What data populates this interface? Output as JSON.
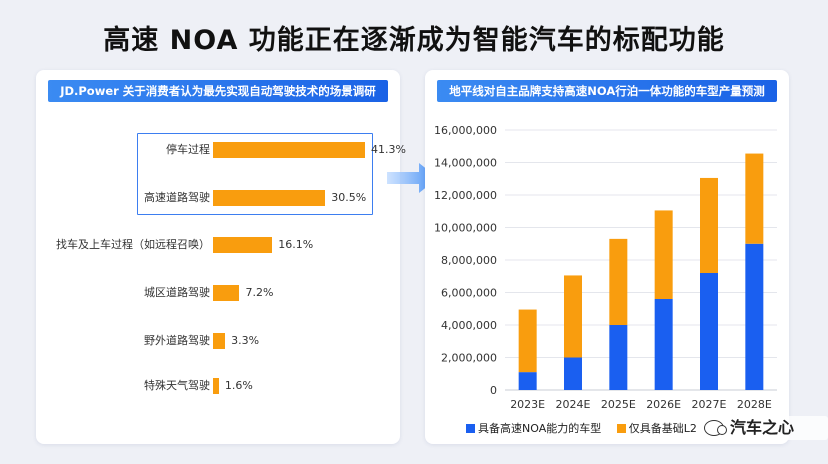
{
  "page": {
    "title": "高速 NOA 功能正在逐渐成为智能汽车的标配功能"
  },
  "left_panel": {
    "title": "JD.Power 关于消费者认为最先实现自动驾驶技术的场景调研"
  },
  "right_panel": {
    "title": "地平线对自主品牌支持高速NOA行泊一体功能的车型产量预测"
  },
  "watermark": {
    "text": "汽车之心"
  },
  "chart_data": [
    {
      "type": "bar",
      "orientation": "horizontal",
      "title": "JD.Power 关于消费者认为最先实现自动驾驶技术的场景调研",
      "categories": [
        "停车过程",
        "高速道路驾驶",
        "找车及上车过程（如远程召唤）",
        "城区道路驾驶",
        "野外道路驾驶",
        "特殊天气驾驶"
      ],
      "values": [
        41.3,
        30.5,
        16.1,
        7.2,
        3.3,
        1.6
      ],
      "value_labels": [
        "41.3%",
        "30.5%",
        "16.1%",
        "7.2%",
        "3.3%",
        "1.6%"
      ],
      "unit": "%",
      "highlighted_categories": [
        "停车过程",
        "高速道路驾驶"
      ],
      "color": "#f99d0e"
    },
    {
      "type": "bar",
      "stacked": true,
      "title": "地平线对自主品牌支持高速NOA行泊一体功能的车型产量预测",
      "categories": [
        "2023E",
        "2024E",
        "2025E",
        "2026E",
        "2027E",
        "2028E"
      ],
      "ylim": [
        0,
        16000000
      ],
      "yticks": [
        "0",
        "2,000,000",
        "4,000,000",
        "6,000,000",
        "8,000,000",
        "10,000,000",
        "12,000,000",
        "14,000,000",
        "16,000,000"
      ],
      "grid": true,
      "legend": "bottom",
      "series": [
        {
          "name": "具备高速NOA能力的车型",
          "values": [
            1100000,
            2000000,
            4000000,
            5600000,
            7200000,
            9000000
          ],
          "color": "#1a5ff0"
        },
        {
          "name": "仅具备基础L2",
          "values": [
            3850000,
            5050000,
            5300000,
            5450000,
            5850000,
            5550000
          ],
          "color": "#f99d0e"
        }
      ]
    }
  ]
}
